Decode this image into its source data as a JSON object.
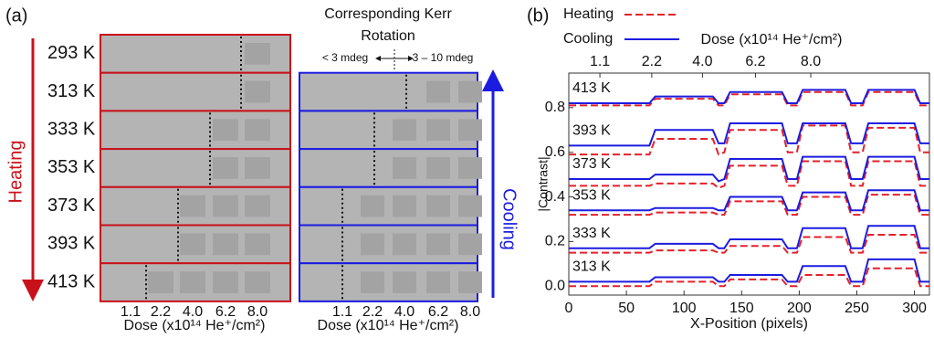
{
  "panel_a": {
    "label": "(a)",
    "heating_label": "Heating",
    "cooling_label": "Cooling",
    "kerr_title": [
      "Corresponding Kerr",
      "Rotation"
    ],
    "kerr_low": "< 3 mdeg",
    "kerr_high": "3 – 10 mdeg",
    "temperatures": [
      "293 K",
      "313 K",
      "333 K",
      "353 K",
      "373 K",
      "393 K",
      "413 K"
    ],
    "doses": [
      "1.1",
      "2.2",
      "4.0",
      "6.2",
      "8.0"
    ],
    "dose_label": "Dose (x10¹⁴ He⁺/cm²)"
  },
  "chart_data": {
    "type": "line",
    "label": "(b)",
    "xlabel": "X-Position (pixels)",
    "ylabel": "|Contrast|",
    "x2label": "Dose (x10¹⁴ He⁺/cm²)",
    "x2ticks": [
      {
        "value": 27,
        "label": "1.1"
      },
      {
        "value": 72,
        "label": "2.2"
      },
      {
        "value": 116,
        "label": "4.0"
      },
      {
        "value": 162,
        "label": "6.2"
      },
      {
        "value": 210,
        "label": "8.0"
      }
    ],
    "xlim": [
      0,
      313
    ],
    "xticks": [
      0,
      50,
      100,
      150,
      200,
      250,
      300
    ],
    "ylim": [
      -0.04,
      0.955
    ],
    "yticks": [
      {
        "value": 0,
        "label": "0.0"
      },
      0.2,
      0.4,
      0.6,
      0.8
    ],
    "x": [
      0,
      70,
      75,
      125,
      130,
      135,
      140,
      185,
      190,
      198,
      203,
      240,
      245,
      255,
      260,
      300,
      305,
      313
    ],
    "series": [
      {
        "name": "Heating",
        "color": "#e3212b",
        "dash": true,
        "values": [
          0.81,
          0.81,
          0.84,
          0.84,
          0.81,
          0.81,
          0.86,
          0.86,
          0.81,
          0.81,
          0.87,
          0.87,
          0.81,
          0.81,
          0.87,
          0.87,
          0.81,
          0.81
        ]
      },
      {
        "name": "Cooling",
        "color": "#1c1ce0",
        "label": "413 K",
        "values": [
          0.82,
          0.82,
          0.85,
          0.85,
          0.82,
          0.82,
          0.87,
          0.87,
          0.82,
          0.82,
          0.88,
          0.88,
          0.82,
          0.82,
          0.88,
          0.88,
          0.82,
          0.82
        ]
      },
      {
        "name": "Heating",
        "color": "#e3212b",
        "dash": true,
        "values": [
          0.59,
          0.59,
          0.66,
          0.66,
          0.59,
          0.6,
          0.7,
          0.7,
          0.6,
          0.6,
          0.72,
          0.72,
          0.6,
          0.6,
          0.71,
          0.71,
          0.6,
          0.6
        ]
      },
      {
        "name": "Cooling",
        "color": "#1c1ce0",
        "label": "393 K",
        "values": [
          0.63,
          0.63,
          0.7,
          0.7,
          0.64,
          0.64,
          0.73,
          0.73,
          0.64,
          0.64,
          0.73,
          0.73,
          0.64,
          0.64,
          0.73,
          0.73,
          0.64,
          0.64
        ]
      },
      {
        "name": "Heating",
        "color": "#e3212b",
        "dash": true,
        "values": [
          0.45,
          0.45,
          0.46,
          0.46,
          0.44,
          0.45,
          0.54,
          0.54,
          0.45,
          0.45,
          0.56,
          0.56,
          0.45,
          0.45,
          0.56,
          0.56,
          0.45,
          0.45
        ]
      },
      {
        "name": "Cooling",
        "color": "#1c1ce0",
        "label": "373 K",
        "values": [
          0.48,
          0.48,
          0.5,
          0.5,
          0.47,
          0.48,
          0.57,
          0.57,
          0.48,
          0.48,
          0.58,
          0.58,
          0.48,
          0.48,
          0.58,
          0.58,
          0.48,
          0.48
        ]
      },
      {
        "name": "Heating",
        "color": "#e3212b",
        "dash": true,
        "values": [
          0.32,
          0.32,
          0.33,
          0.33,
          0.32,
          0.32,
          0.38,
          0.38,
          0.32,
          0.32,
          0.4,
          0.4,
          0.32,
          0.32,
          0.41,
          0.41,
          0.32,
          0.32
        ]
      },
      {
        "name": "Cooling",
        "color": "#1c1ce0",
        "label": "353 K",
        "values": [
          0.34,
          0.34,
          0.35,
          0.35,
          0.34,
          0.34,
          0.4,
          0.4,
          0.34,
          0.34,
          0.42,
          0.42,
          0.34,
          0.34,
          0.43,
          0.43,
          0.34,
          0.34
        ]
      },
      {
        "name": "Heating",
        "color": "#e3212b",
        "dash": true,
        "values": [
          0.15,
          0.15,
          0.16,
          0.16,
          0.15,
          0.15,
          0.18,
          0.18,
          0.15,
          0.15,
          0.22,
          0.22,
          0.15,
          0.15,
          0.23,
          0.23,
          0.15,
          0.15
        ]
      },
      {
        "name": "Cooling",
        "color": "#1c1ce0",
        "label": "333 K",
        "values": [
          0.17,
          0.17,
          0.19,
          0.19,
          0.17,
          0.17,
          0.21,
          0.21,
          0.17,
          0.17,
          0.26,
          0.26,
          0.17,
          0.17,
          0.27,
          0.27,
          0.17,
          0.17
        ]
      },
      {
        "name": "Heating",
        "color": "#e3212b",
        "dash": true,
        "values": [
          0.0,
          0.0,
          0.02,
          0.02,
          0.0,
          0.0,
          0.03,
          0.03,
          0.0,
          0.0,
          0.05,
          0.05,
          0.0,
          0.0,
          0.08,
          0.08,
          0.0,
          0.0
        ]
      },
      {
        "name": "Cooling",
        "color": "#1c1ce0",
        "label": "313 K",
        "values": [
          0.02,
          0.02,
          0.04,
          0.04,
          0.02,
          0.02,
          0.05,
          0.05,
          0.02,
          0.02,
          0.09,
          0.09,
          0.02,
          0.02,
          0.12,
          0.12,
          0.02,
          0.02
        ]
      }
    ]
  }
}
